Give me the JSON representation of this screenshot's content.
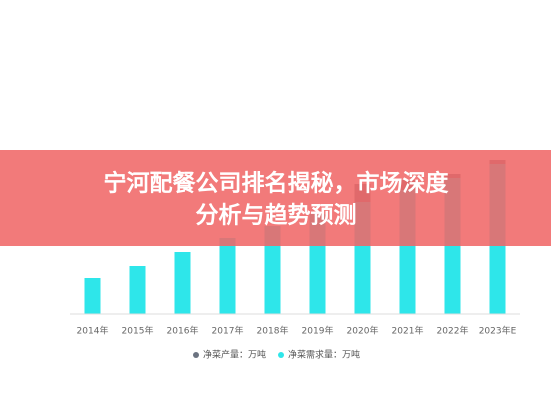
{
  "chart_data": {
    "type": "bar",
    "categories": [
      "2014年",
      "2015年",
      "2016年",
      "2017年",
      "2018年",
      "2019年",
      "2020年",
      "2021年",
      "2022年",
      "2023年E"
    ],
    "series": [
      {
        "name": "净菜产量：万吨",
        "color": "#6b7380",
        "values": [
          30,
          40,
          55,
          70,
          80,
          95,
          130,
          134,
          140,
          154
        ]
      },
      {
        "name": "净菜需求量：万吨",
        "color": "#2ee6ea",
        "values": [
          36,
          48,
          62,
          76,
          88,
          100,
          112,
          124,
          136,
          150
        ]
      }
    ],
    "ylim": [
      0,
      160
    ]
  },
  "banner": {
    "lines": [
      "宁河配餐公司排名揭秘，市场深度",
      "分析与趋势预测"
    ]
  }
}
